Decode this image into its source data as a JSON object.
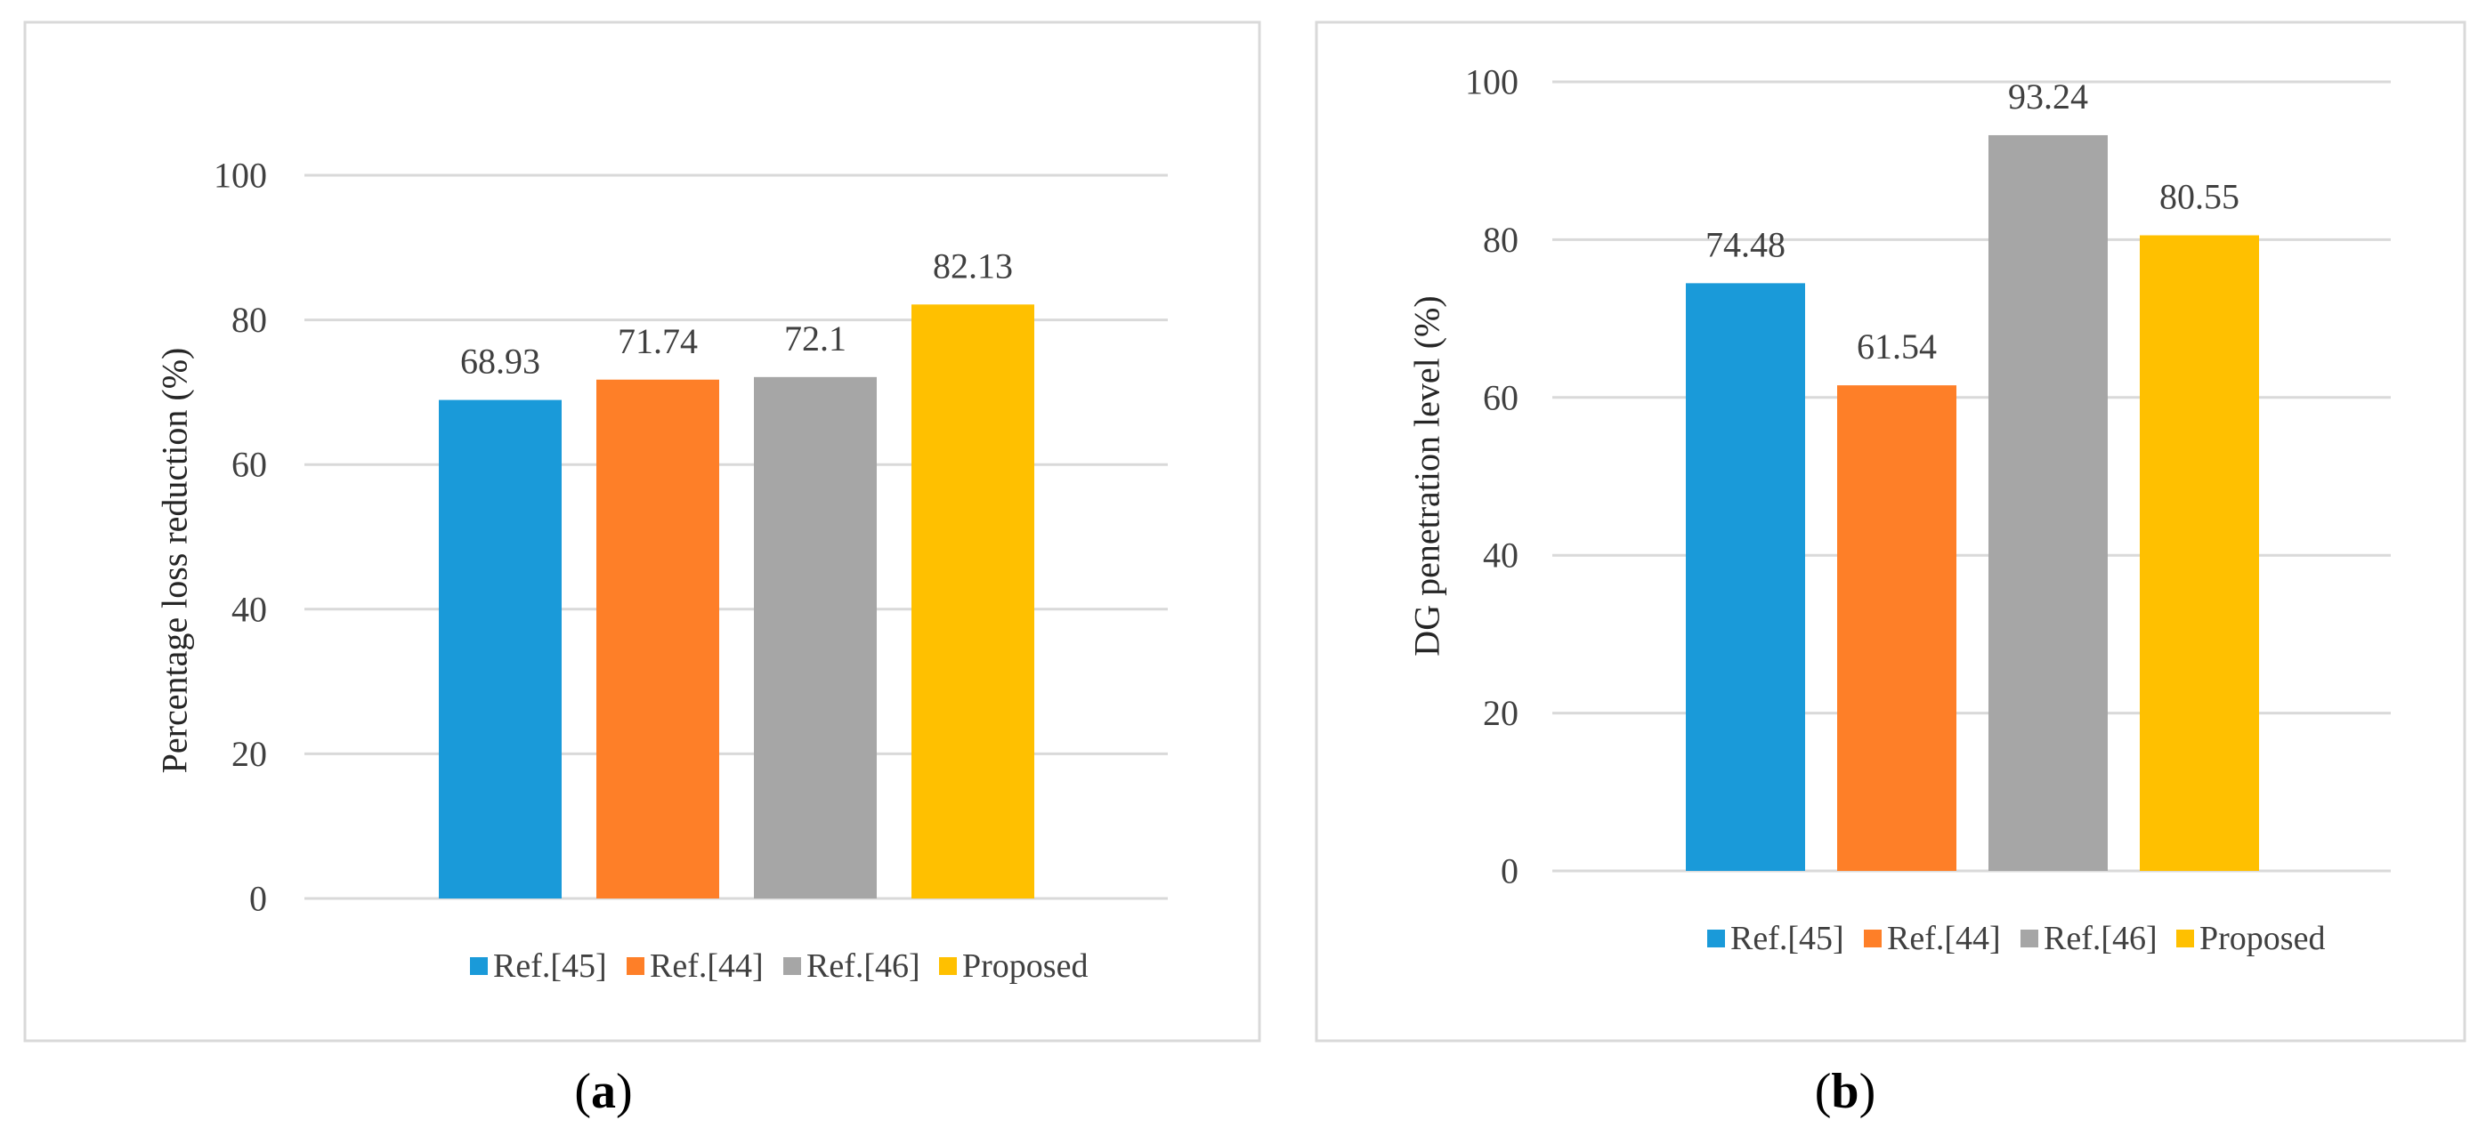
{
  "figure": {
    "panels": [
      {
        "caption_letter": "a",
        "caption_open": "(",
        "caption_close": ")"
      },
      {
        "caption_letter": "b",
        "caption_open": "(",
        "caption_close": ")"
      }
    ]
  },
  "chart_data": [
    {
      "type": "bar",
      "title": "",
      "xlabel": "",
      "ylabel": "Percentage loss reduction (%)",
      "categories": [
        "Ref.[45]",
        "Ref.[44]",
        "Ref.[46]",
        "Proposed"
      ],
      "values": [
        68.93,
        71.74,
        72.1,
        82.13
      ],
      "value_labels": [
        "68.93",
        "71.74",
        "72.1",
        "82.13"
      ],
      "colors": [
        "#1a9ad9",
        "#fe7f28",
        "#a6a6a6",
        "#ffc000"
      ],
      "ylim": [
        0,
        100
      ],
      "yticks": [
        "0",
        "20",
        "40",
        "60",
        "80",
        "100"
      ],
      "grid": true,
      "legend": "bottom-right"
    },
    {
      "type": "bar",
      "title": "",
      "xlabel": "",
      "ylabel": "DG penetration level (%)",
      "categories": [
        "Ref.[45]",
        "Ref.[44]",
        "Ref.[46]",
        "Proposed"
      ],
      "values": [
        74.48,
        61.54,
        93.24,
        80.55
      ],
      "value_labels": [
        "74.48",
        "61.54",
        "93.24",
        "80.55"
      ],
      "colors": [
        "#1a9ad9",
        "#fe7f28",
        "#a6a6a6",
        "#ffc000"
      ],
      "ylim": [
        0,
        100
      ],
      "yticks": [
        "0",
        "20",
        "40",
        "60",
        "80",
        "100"
      ],
      "grid": true,
      "legend": "bottom"
    }
  ]
}
